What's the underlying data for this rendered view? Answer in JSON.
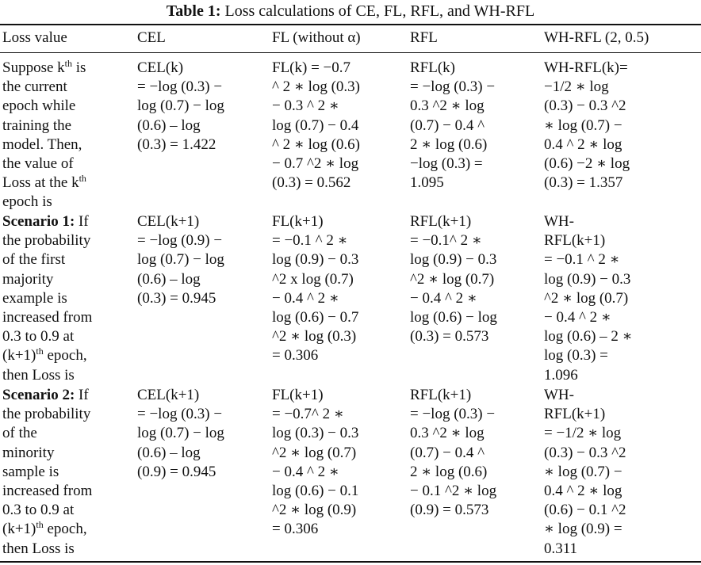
{
  "caption": {
    "label": "Table 1:",
    "text": "Loss calculations of CE, FL, RFL, and WH-RFL"
  },
  "headers": [
    "Loss value",
    "CEL",
    "FL (without α)",
    "RFL",
    "WH-RFL (2, 0.5)"
  ],
  "rows": [
    {
      "desc_pre": "Suppose k",
      "desc_sup": "th",
      "desc_mid": " is\nthe current\nepoch while\ntraining the\nmodel. Then,\nthe value of\nLoss at the k",
      "desc_sup2": "th",
      "desc_post": "\nepoch is",
      "cel": "CEL(k)\n= −log (0.3) −\nlog (0.7) − log\n(0.6) – log\n(0.3) = 1.422",
      "fl": "FL(k) = −0.7\n^ 2 ∗ log (0.3)\n− 0.3 ^ 2 ∗\nlog (0.7) − 0.4\n^ 2 ∗ log (0.6)\n− 0.7 ^2 ∗ log\n(0.3) = 0.562",
      "rfl": "RFL(k)\n= −log (0.3) −\n0.3 ^2 ∗ log\n(0.7) − 0.4 ^\n2 ∗ log (0.6)\n−log (0.3) =\n1.095",
      "whrfl": "WH-RFL(k)=\n−1/2 ∗ log\n(0.3) − 0.3 ^2\n∗ log (0.7) −\n0.4 ^ 2 ∗ log\n(0.6) −2 ∗ log\n(0.3) = 1.357"
    },
    {
      "scenario": "Scenario 1:",
      "desc_pre": " If\nthe probability\nof the first\nmajority\nexample is\nincreased from\n0.3 to 0.9 at\n(k+1)",
      "desc_sup": "th",
      "desc_post": " epoch,\nthen Loss is",
      "cel": "CEL(k+1)\n= −log (0.9) −\nlog (0.7) − log\n(0.6) – log\n(0.3) = 0.945",
      "fl": "FL(k+1)\n= −0.1 ^ 2 ∗\nlog (0.9) − 0.3\n^2 x log (0.7)\n− 0.4 ^ 2 ∗\nlog (0.6) − 0.7\n^2 ∗ log (0.3)\n= 0.306",
      "rfl": "RFL(k+1)\n= −0.1^ 2 ∗\nlog (0.9) − 0.3\n^2 ∗ log (0.7)\n− 0.4 ^ 2 ∗\nlog (0.6) − log\n(0.3) = 0.573",
      "whrfl": "WH-\nRFL(k+1)\n= −0.1 ^ 2 ∗\nlog (0.9) − 0.3\n^2 ∗ log (0.7)\n− 0.4 ^ 2 ∗\nlog (0.6) – 2 ∗\nlog (0.3) =\n1.096"
    },
    {
      "scenario": "Scenario 2:",
      "desc_pre": " If\nthe probability\nof the\nminority\nsample is\nincreased from\n0.3 to 0.9 at\n(k+1)",
      "desc_sup": "th",
      "desc_post": " epoch,\nthen Loss is",
      "cel": "CEL(k+1)\n= −log (0.3) −\nlog (0.7) − log\n(0.6) – log\n(0.9) = 0.945",
      "fl": "FL(k+1)\n= −0.7^ 2 ∗\nlog (0.3) − 0.3\n^2 ∗ log (0.7)\n− 0.4 ^ 2 ∗\nlog (0.6) − 0.1\n^2 ∗ log (0.9)\n= 0.306",
      "rfl": "RFL(k+1)\n= −log (0.3) −\n0.3 ^2 ∗ log\n(0.7) − 0.4 ^\n2 ∗ log (0.6)\n− 0.1 ^2 ∗ log\n(0.9) = 0.573",
      "whrfl": "WH-\nRFL(k+1)\n= −1/2 ∗ log\n(0.3) − 0.3 ^2\n∗ log (0.7) −\n0.4 ^ 2 ∗ log\n(0.6) − 0.1 ^2\n∗ log (0.9) =\n0.311"
    }
  ]
}
